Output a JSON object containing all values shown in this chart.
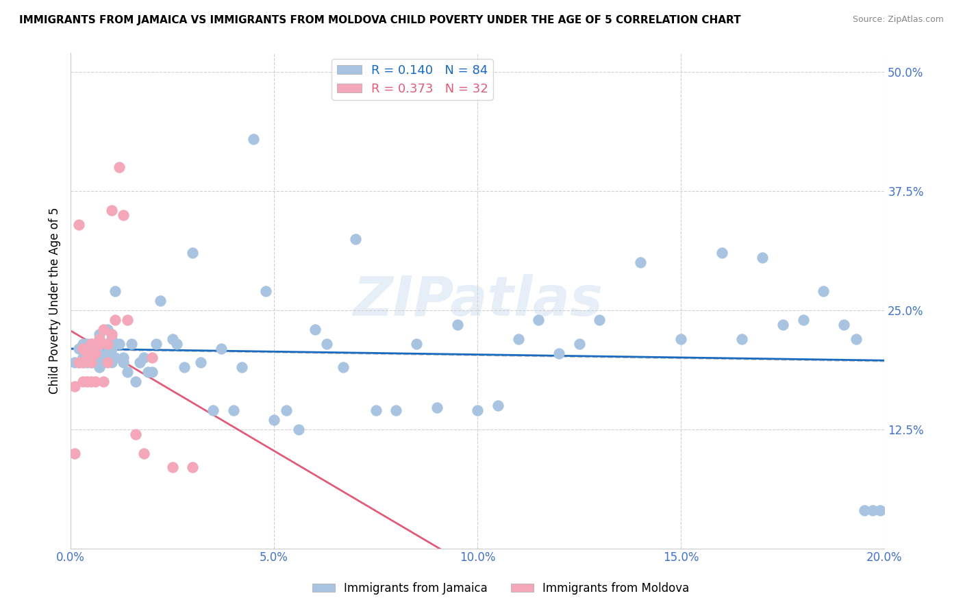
{
  "title": "IMMIGRANTS FROM JAMAICA VS IMMIGRANTS FROM MOLDOVA CHILD POVERTY UNDER THE AGE OF 5 CORRELATION CHART",
  "source": "Source: ZipAtlas.com",
  "xlabel_ticks": [
    "0.0%",
    "5.0%",
    "10.0%",
    "15.0%",
    "20.0%"
  ],
  "xlabel_tick_vals": [
    0.0,
    0.05,
    0.1,
    0.15,
    0.2
  ],
  "ylabel_ticks": [
    "12.5%",
    "25.0%",
    "37.5%",
    "50.0%"
  ],
  "ylabel_tick_vals": [
    0.125,
    0.25,
    0.375,
    0.5
  ],
  "xlim": [
    0.0,
    0.2
  ],
  "ylim": [
    0.0,
    0.52
  ],
  "jamaica_R": 0.14,
  "jamaica_N": 84,
  "moldova_R": 0.373,
  "moldova_N": 32,
  "jamaica_color": "#a8c4e0",
  "moldova_color": "#f4a7b9",
  "jamaica_line_color": "#1a6bbf",
  "moldova_line_color": "#e05c7a",
  "watermark": "ZIPatlas",
  "legend_label_jamaica": "Immigrants from Jamaica",
  "legend_label_moldova": "Immigrants from Moldova",
  "jamaica_x": [
    0.001,
    0.002,
    0.002,
    0.003,
    0.003,
    0.003,
    0.004,
    0.004,
    0.004,
    0.005,
    0.005,
    0.005,
    0.005,
    0.006,
    0.006,
    0.006,
    0.007,
    0.007,
    0.007,
    0.007,
    0.008,
    0.008,
    0.009,
    0.009,
    0.01,
    0.01,
    0.01,
    0.011,
    0.011,
    0.012,
    0.013,
    0.013,
    0.014,
    0.015,
    0.016,
    0.017,
    0.018,
    0.019,
    0.02,
    0.021,
    0.022,
    0.025,
    0.026,
    0.028,
    0.03,
    0.032,
    0.035,
    0.037,
    0.04,
    0.042,
    0.045,
    0.048,
    0.05,
    0.053,
    0.056,
    0.06,
    0.063,
    0.067,
    0.07,
    0.075,
    0.08,
    0.085,
    0.09,
    0.095,
    0.1,
    0.105,
    0.11,
    0.115,
    0.12,
    0.125,
    0.13,
    0.14,
    0.15,
    0.16,
    0.165,
    0.17,
    0.175,
    0.18,
    0.185,
    0.19,
    0.193,
    0.195,
    0.197,
    0.199
  ],
  "jamaica_y": [
    0.195,
    0.21,
    0.195,
    0.2,
    0.215,
    0.195,
    0.215,
    0.205,
    0.195,
    0.21,
    0.205,
    0.215,
    0.195,
    0.215,
    0.2,
    0.195,
    0.215,
    0.205,
    0.225,
    0.19,
    0.215,
    0.195,
    0.23,
    0.205,
    0.21,
    0.22,
    0.195,
    0.27,
    0.2,
    0.215,
    0.2,
    0.195,
    0.185,
    0.215,
    0.175,
    0.195,
    0.2,
    0.185,
    0.185,
    0.215,
    0.26,
    0.22,
    0.215,
    0.19,
    0.31,
    0.195,
    0.145,
    0.21,
    0.145,
    0.19,
    0.43,
    0.27,
    0.135,
    0.145,
    0.125,
    0.23,
    0.215,
    0.19,
    0.325,
    0.145,
    0.145,
    0.215,
    0.148,
    0.235,
    0.145,
    0.15,
    0.22,
    0.24,
    0.205,
    0.215,
    0.24,
    0.3,
    0.22,
    0.31,
    0.22,
    0.305,
    0.235,
    0.24,
    0.27,
    0.235,
    0.22,
    0.04,
    0.04,
    0.04
  ],
  "moldova_x": [
    0.001,
    0.001,
    0.002,
    0.002,
    0.003,
    0.003,
    0.003,
    0.004,
    0.004,
    0.005,
    0.005,
    0.005,
    0.006,
    0.006,
    0.007,
    0.007,
    0.007,
    0.008,
    0.008,
    0.009,
    0.009,
    0.01,
    0.01,
    0.011,
    0.012,
    0.013,
    0.014,
    0.016,
    0.018,
    0.02,
    0.025,
    0.03
  ],
  "moldova_y": [
    0.17,
    0.1,
    0.195,
    0.34,
    0.175,
    0.21,
    0.195,
    0.175,
    0.205,
    0.175,
    0.195,
    0.215,
    0.175,
    0.205,
    0.215,
    0.22,
    0.215,
    0.23,
    0.175,
    0.195,
    0.215,
    0.225,
    0.355,
    0.24,
    0.4,
    0.35,
    0.24,
    0.12,
    0.1,
    0.2,
    0.085,
    0.085
  ]
}
